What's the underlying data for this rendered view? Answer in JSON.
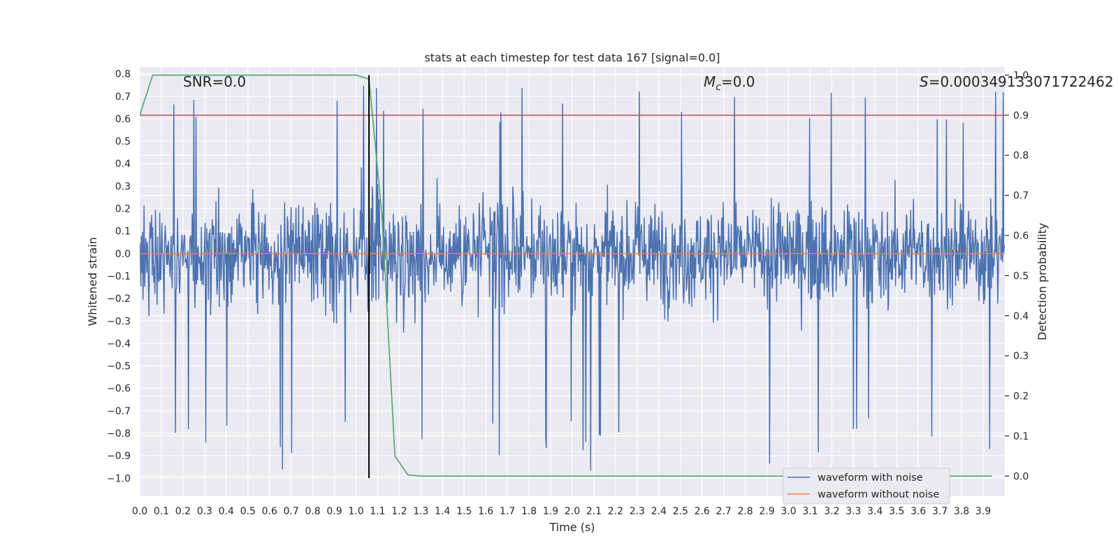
{
  "chart_data": {
    "type": "line",
    "title": "stats at each timestep for test data 167 [signal=0.0]",
    "xlabel": "Time (s)",
    "ylabel": "Whitened strain",
    "ylabel_right": "Detection probability",
    "xlim": [
      0.0,
      4.0
    ],
    "ylim": [
      -1.08,
      0.83
    ],
    "ylim_right": [
      -0.05,
      1.02
    ],
    "x_ticks": [
      "0.0",
      "0.1",
      "0.2",
      "0.3",
      "0.4",
      "0.5",
      "0.6",
      "0.7",
      "0.8",
      "0.9",
      "1.0",
      "1.1",
      "1.2",
      "1.3",
      "1.4",
      "1.5",
      "1.6",
      "1.7",
      "1.8",
      "1.9",
      "2.0",
      "2.1",
      "2.2",
      "2.3",
      "2.4",
      "2.5",
      "2.6",
      "2.7",
      "2.8",
      "2.9",
      "3.0",
      "3.1",
      "3.2",
      "3.3",
      "3.4",
      "3.5",
      "3.6",
      "3.7",
      "3.8",
      "3.9"
    ],
    "y_ticks": [
      "0.8",
      "0.7",
      "0.6",
      "0.5",
      "0.4",
      "0.3",
      "0.2",
      "0.1",
      "0.0",
      "-0.1",
      "-0.2",
      "-0.3",
      "-0.4",
      "-0.5",
      "-0.6",
      "-0.7",
      "-0.8",
      "-0.9",
      "-1.0"
    ],
    "y_ticks_right": [
      "1.0",
      "0.9",
      "0.8",
      "0.7",
      "0.6",
      "0.5",
      "0.4",
      "0.3",
      "0.2",
      "0.1",
      "0.0"
    ],
    "annotations": {
      "snr_text": "SNR=0.0",
      "mc_symbol": "M",
      "mc_subscript": "c",
      "mc_value": "=0.0",
      "s_symbol": "S",
      "s_value": "=0.000349133071722462"
    },
    "threshold_line": {
      "axis": "right",
      "y": 0.9
    },
    "detection_time_line": {
      "x": 1.06
    },
    "legend": {
      "position": "lower-right",
      "entries": [
        {
          "label": "waveform with noise",
          "color": "#4c72b0"
        },
        {
          "label": "waveform without noise",
          "color": "#dd8452"
        }
      ]
    },
    "series": [
      {
        "name": "waveform with noise",
        "axis": "left",
        "color": "#4c72b0",
        "x_range": [
          0.0,
          4.0
        ],
        "approx_range": [
          -0.97,
          0.75
        ],
        "note": "dense stochastic noise trace"
      },
      {
        "name": "waveform without noise",
        "axis": "left",
        "color": "#dd8452",
        "x": [
          0.0,
          4.0
        ],
        "y": [
          0.0,
          0.0
        ]
      },
      {
        "name": "Detection probability",
        "axis": "right",
        "color": "#55a868",
        "x": [
          0.0,
          0.06,
          0.12,
          1.0,
          1.06,
          1.12,
          1.18,
          1.24,
          1.3,
          3.94
        ],
        "y": [
          0.9,
          1.0,
          1.0,
          1.0,
          0.99,
          0.65,
          0.05,
          0.003,
          0.0,
          0.0
        ]
      },
      {
        "name": "threshold",
        "axis": "right",
        "color": "#c44e52",
        "x": [
          0.0,
          4.0
        ],
        "y": [
          0.9,
          0.9
        ]
      }
    ],
    "colors": {
      "plot_bg": "#eaeaf2",
      "grid": "#ffffff",
      "noise": "#4c72b0",
      "clean": "#dd8452",
      "probability": "#55a868",
      "threshold": "#c44e52",
      "marker": "#000000"
    }
  }
}
